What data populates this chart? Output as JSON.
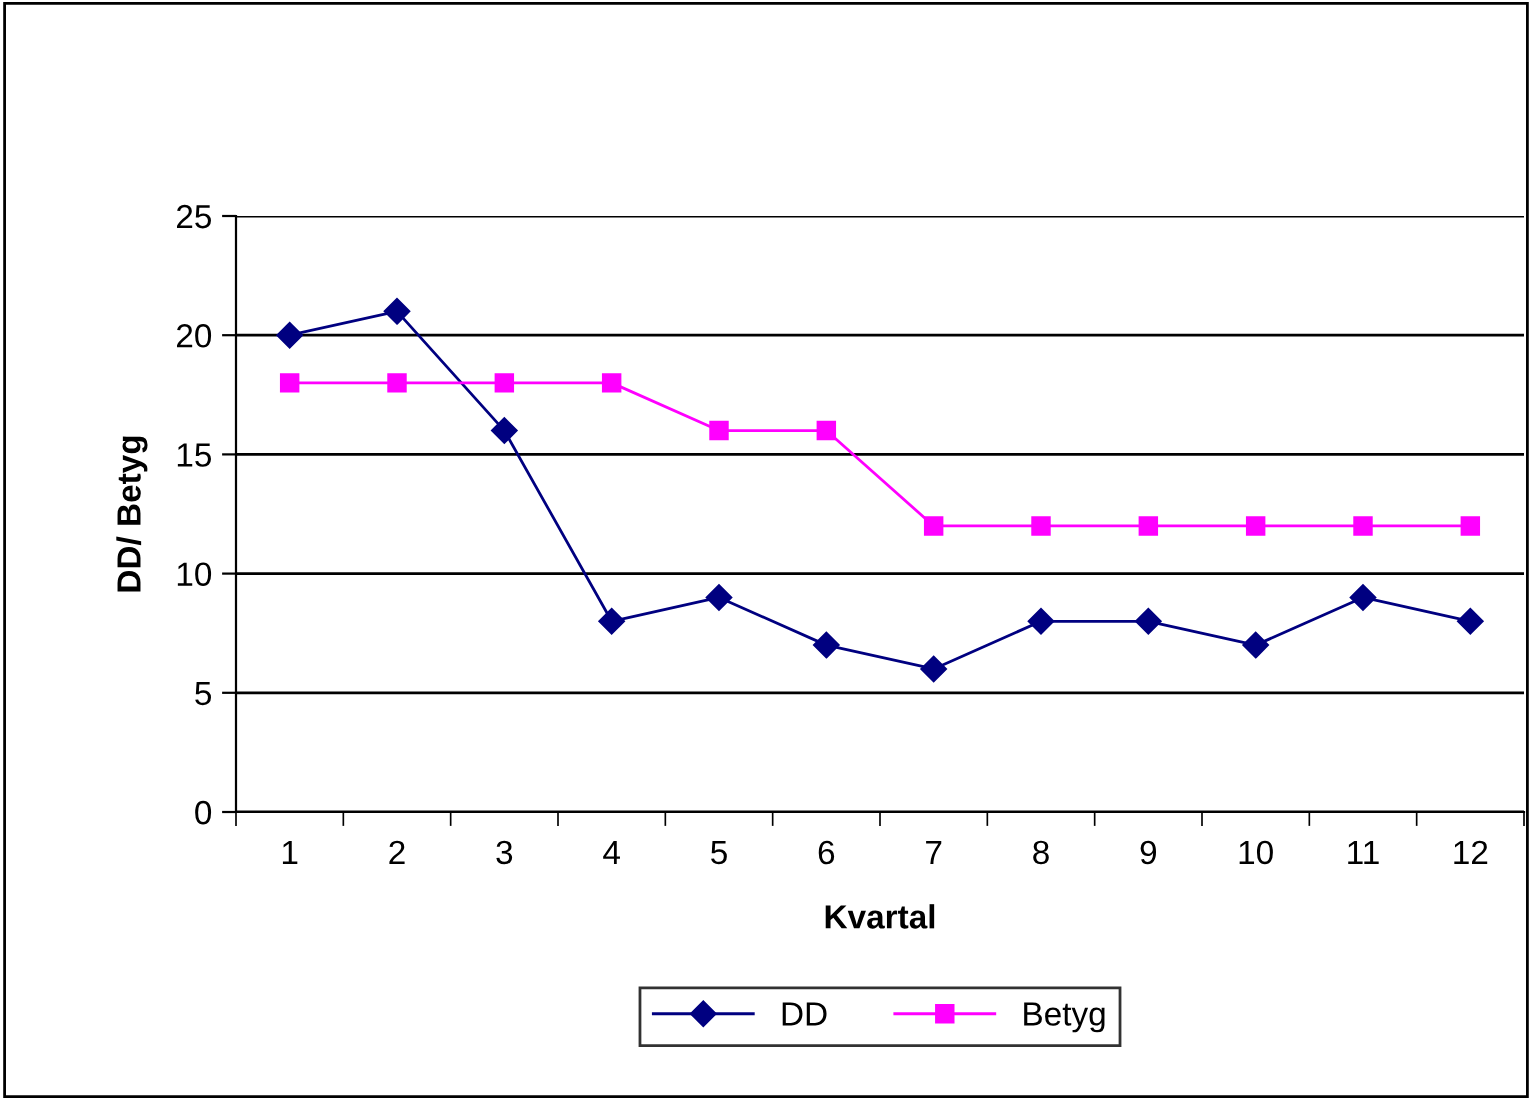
{
  "chart_data": {
    "type": "line",
    "xlabel": "Kvartal",
    "ylabel": "DD/ Betyg",
    "categories": [
      "1",
      "2",
      "3",
      "4",
      "5",
      "6",
      "7",
      "8",
      "9",
      "10",
      "11",
      "12"
    ],
    "series": [
      {
        "name": "DD",
        "color": "#000080",
        "marker": "diamond",
        "values": [
          20,
          21,
          16,
          8,
          9,
          7,
          6,
          8,
          8,
          7,
          9,
          8
        ]
      },
      {
        "name": "Betyg",
        "color": "#ff00ff",
        "marker": "square",
        "values": [
          18,
          18,
          18,
          18,
          16,
          16,
          12,
          12,
          12,
          12,
          12,
          12
        ]
      }
    ],
    "ylim": [
      0,
      25
    ],
    "yticks": [
      0,
      5,
      10,
      15,
      20,
      25
    ],
    "grid": "y",
    "legend": "bottom",
    "line_style": "solid"
  }
}
